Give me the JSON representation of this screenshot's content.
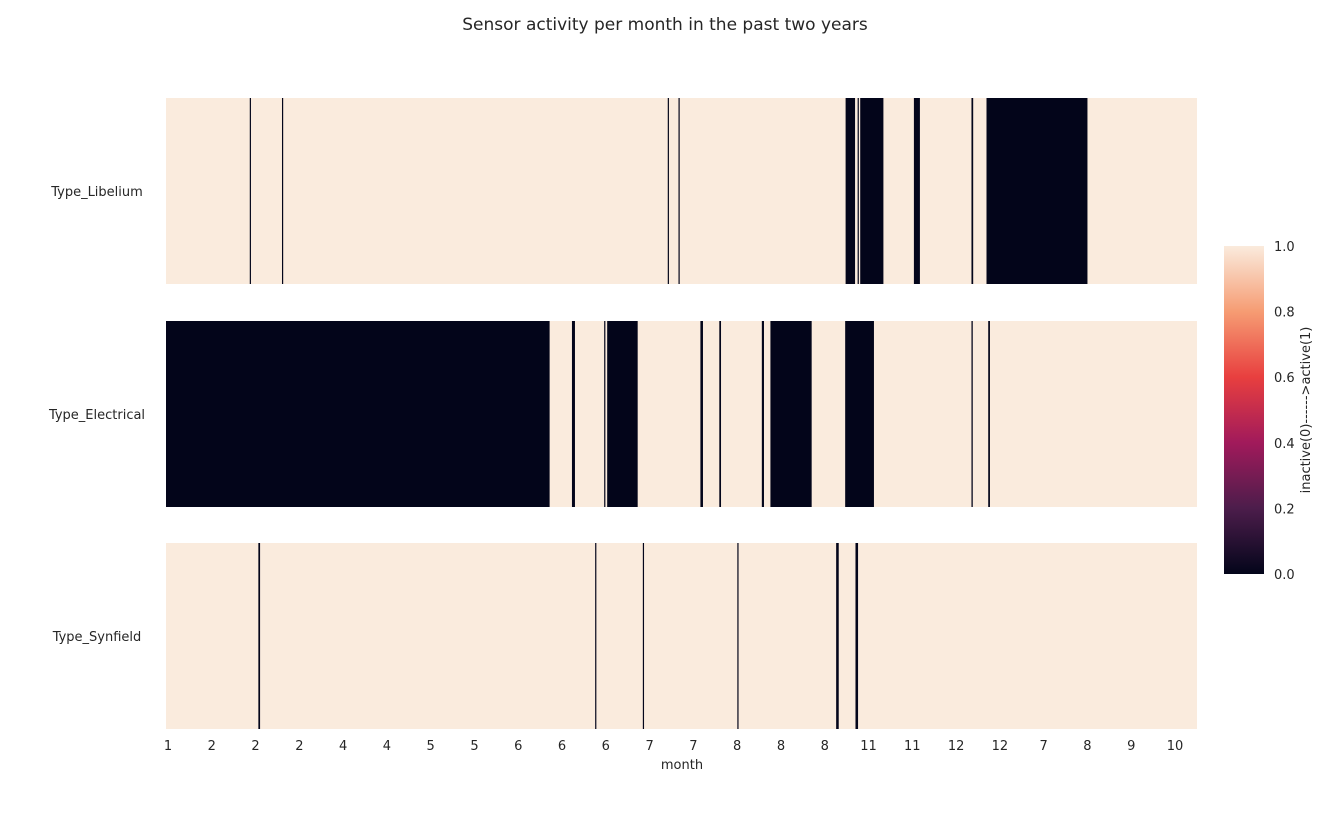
{
  "chart_data": {
    "type": "heatmap",
    "title": "Sensor activity per month in the past two years",
    "xlabel": "month",
    "ylabel": "",
    "x_tick_labels": [
      "1",
      "2",
      "2",
      "2",
      "4",
      "4",
      "5",
      "5",
      "6",
      "6",
      "6",
      "7",
      "7",
      "8",
      "8",
      "8",
      "11",
      "11",
      "12",
      "12",
      "7",
      "8",
      "9",
      "10"
    ],
    "colorbar": {
      "label": "inactive(0)------>active(1)",
      "ticks": [
        "0.0",
        "0.2",
        "0.4",
        "0.6",
        "0.8",
        "1.0"
      ],
      "range": [
        0,
        1
      ]
    },
    "rows": [
      {
        "name": "Type_Libelium",
        "inactive_intervals": [
          [
            1.95,
            1.97
          ],
          [
            2.7,
            2.72
          ],
          [
            11.68,
            11.69
          ],
          [
            11.93,
            11.95
          ],
          [
            15.82,
            16.04
          ],
          [
            16.1,
            16.11
          ],
          [
            16.16,
            16.7
          ],
          [
            17.41,
            17.55
          ],
          [
            18.75,
            18.79
          ],
          [
            19.1,
            21.45
          ]
        ]
      },
      {
        "name": "Type_Electrical",
        "inactive_intervals": [
          [
            0,
            8.93
          ],
          [
            9.45,
            9.52
          ],
          [
            10.2,
            10.22
          ],
          [
            10.27,
            10.98
          ],
          [
            12.44,
            12.5
          ],
          [
            12.88,
            12.92
          ],
          [
            13.87,
            13.92
          ],
          [
            14.07,
            15.03
          ],
          [
            15.81,
            16.48
          ],
          [
            18.75,
            18.78
          ],
          [
            19.14,
            19.18
          ]
        ]
      },
      {
        "name": "Type_Synfield",
        "inactive_intervals": [
          [
            2.15,
            2.19
          ],
          [
            9.99,
            10.0
          ],
          [
            11.1,
            11.11
          ],
          [
            13.3,
            13.31
          ],
          [
            15.6,
            15.66
          ],
          [
            16.05,
            16.11
          ]
        ]
      }
    ]
  }
}
